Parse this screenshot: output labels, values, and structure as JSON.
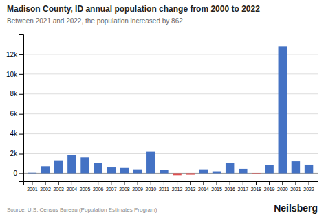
{
  "chart_data": {
    "type": "bar",
    "title": "Madison County, ID annual population change from 2000 to 2022",
    "subtitle": "Between 2021 and 2022, the population increased by 862",
    "annotations": [
      "Source: U.S. Census Bureau (Population Estimates Program)",
      "Neilsberg"
    ],
    "categories": [
      "2001",
      "2002",
      "2003",
      "2004",
      "2005",
      "2006",
      "2007",
      "2008",
      "2009",
      "2010",
      "2011",
      "2012",
      "2013",
      "2014",
      "2015",
      "2016",
      "2017",
      "2018",
      "2019",
      "2020",
      "2021",
      "2022"
    ],
    "values": [
      50,
      700,
      1300,
      1850,
      1600,
      1000,
      650,
      600,
      400,
      2200,
      350,
      -200,
      -150,
      400,
      200,
      1000,
      450,
      -100,
      800,
      12800,
      1200,
      862
    ],
    "colors": [
      "#4472C4",
      "#4472C4",
      "#4472C4",
      "#4472C4",
      "#4472C4",
      "#4472C4",
      "#4472C4",
      "#4472C4",
      "#4472C4",
      "#4472C4",
      "#4472C4",
      "#E05050",
      "#E05050",
      "#4472C4",
      "#4472C4",
      "#4472C4",
      "#4472C4",
      "#E05050",
      "#4472C4",
      "#4472C4",
      "#4472C4",
      "#4472C4"
    ],
    "ylim": [
      -800,
      14000
    ],
    "yticks": [
      0,
      {
        "value": 2000,
        "label": "2k"
      },
      {
        "value": 4000,
        "label": "4k"
      },
      {
        "value": 6000,
        "label": "6k"
      },
      {
        "value": 8000,
        "label": "8k"
      },
      {
        "value": 10000,
        "label": "10k"
      },
      {
        "value": 12000,
        "label": "12k"
      }
    ],
    "grid": true
  }
}
